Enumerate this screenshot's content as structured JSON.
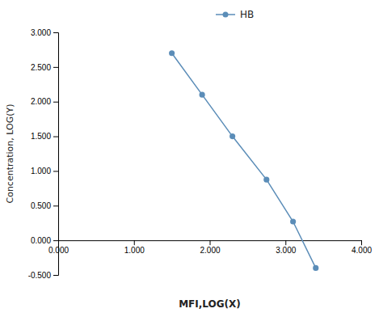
{
  "chart_data": {
    "type": "line",
    "xlabel": "MFI,LOG(X)",
    "ylabel": "Concentration, LOG(Y)",
    "x": [
      1.5,
      1.9,
      2.3,
      2.75,
      3.1,
      3.4
    ],
    "series": [
      {
        "name": "HB",
        "color": "#5b8db8",
        "marker": "circle",
        "values": [
          2.7,
          2.1,
          1.5,
          0.875,
          0.27,
          -0.4
        ]
      }
    ],
    "xlim": [
      0.0,
      4.0
    ],
    "ylim": [
      -0.5,
      3.0
    ],
    "xticks": [
      {
        "value": 0.0,
        "label": "0.000"
      },
      {
        "value": 1.0,
        "label": "1.000"
      },
      {
        "value": 2.0,
        "label": "2.000"
      },
      {
        "value": 3.0,
        "label": "3.000"
      },
      {
        "value": 4.0,
        "label": "4.000"
      }
    ],
    "yticks": [
      {
        "value": -0.5,
        "label": "-0.500"
      },
      {
        "value": 0.0,
        "label": "0.000"
      },
      {
        "value": 0.5,
        "label": "0.500"
      },
      {
        "value": 1.0,
        "label": "1.000"
      },
      {
        "value": 1.5,
        "label": "1.500"
      },
      {
        "value": 2.0,
        "label": "2.000"
      },
      {
        "value": 2.5,
        "label": "2.500"
      },
      {
        "value": 3.0,
        "label": "3.000"
      }
    ],
    "grid": false,
    "legend": "top"
  }
}
